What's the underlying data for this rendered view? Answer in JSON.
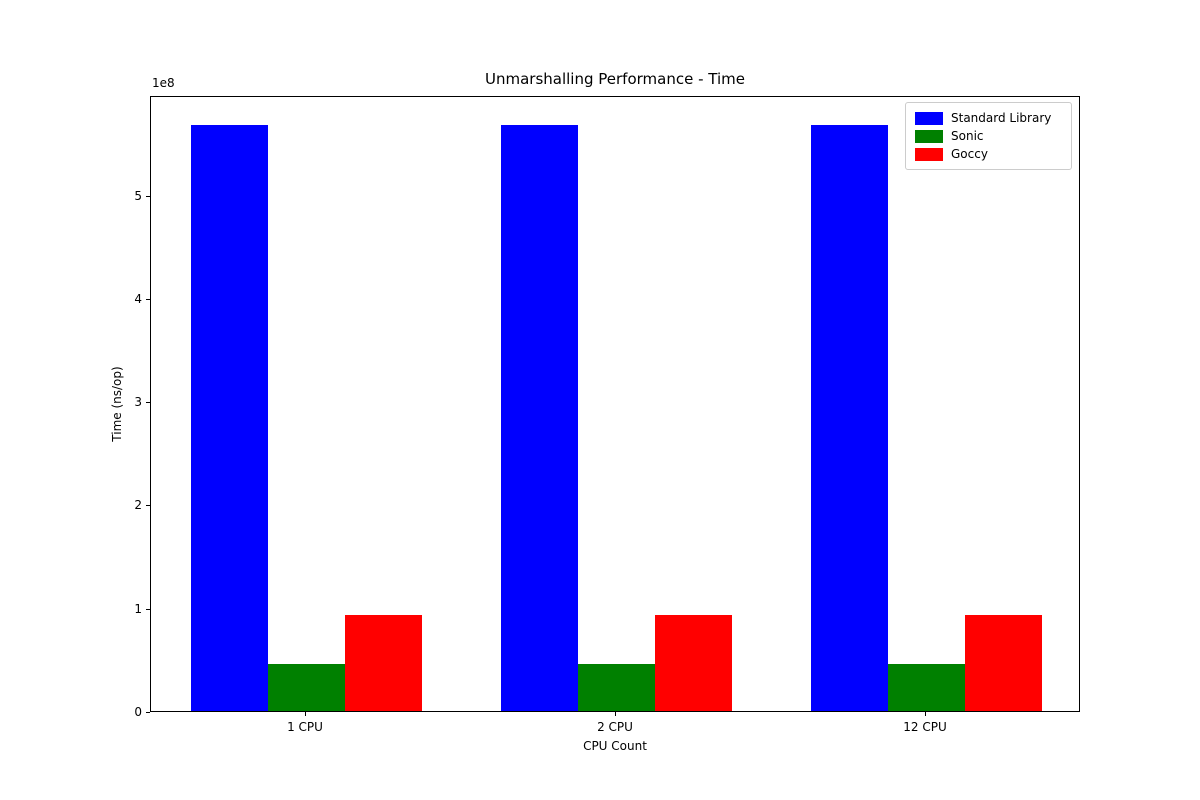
{
  "chart_data": {
    "type": "bar",
    "title": "Unmarshalling Performance - Time",
    "xlabel": "CPU Count",
    "ylabel": "Time (ns/op)",
    "axis_offset_text": "1e8",
    "categories": [
      "1 CPU",
      "2 CPU",
      "12 CPU"
    ],
    "series": [
      {
        "name": "Standard Library",
        "color": "#0000ff",
        "hatch": "/",
        "values": [
          568000000,
          568000000,
          568000000
        ]
      },
      {
        "name": "Sonic",
        "color": "#008000",
        "hatch": "\\",
        "values": [
          46000000,
          46000000,
          46000000
        ]
      },
      {
        "name": "Goccy",
        "color": "#ff0000",
        "hatch": "|",
        "values": [
          93000000,
          93000000,
          93000000
        ]
      }
    ],
    "yticks": [
      "0",
      "1",
      "2",
      "3",
      "4",
      "5"
    ],
    "ytick_scale": 100000000,
    "ylim": [
      0,
      596600000
    ],
    "legend": {
      "position": "upper right",
      "entries": [
        "Standard Library",
        "Sonic",
        "Goccy"
      ]
    },
    "grid": false,
    "hatch_colors": {
      "line": "#000000"
    },
    "background_color": "#ffffff"
  }
}
